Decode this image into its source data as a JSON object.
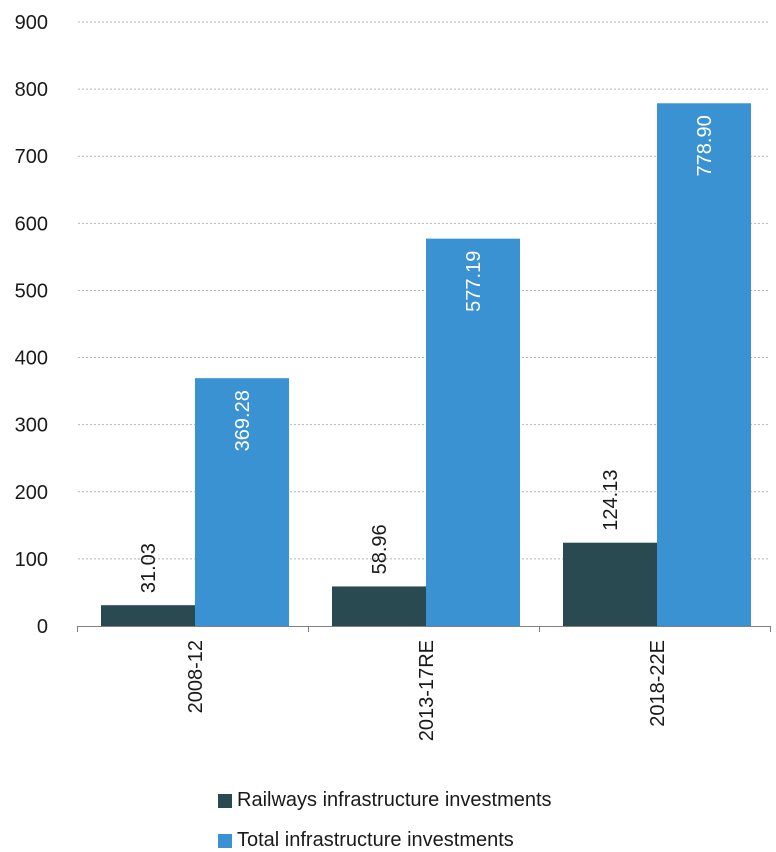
{
  "chart_data": {
    "type": "bar",
    "categories": [
      "2008-12",
      "2013-17RE",
      "2018-22E"
    ],
    "series": [
      {
        "name": "Railways infrastructure investments",
        "values": [
          31.03,
          58.96,
          124.13
        ],
        "labels": [
          "31.03",
          "58.96",
          "124.13"
        ],
        "color": "#2a4a52"
      },
      {
        "name": "Total infrastructure investments",
        "values": [
          369.28,
          577.19,
          778.9
        ],
        "labels": [
          "369.28",
          "577.19",
          "778.90"
        ],
        "color": "#3a92d2"
      }
    ],
    "ylim": [
      0,
      900
    ],
    "yticks": [
      "0",
      "100",
      "200",
      "300",
      "400",
      "500",
      "600",
      "700",
      "800",
      "900"
    ],
    "grid": true,
    "legend_position": "bottom",
    "title": "",
    "xlabel": "",
    "ylabel": ""
  }
}
